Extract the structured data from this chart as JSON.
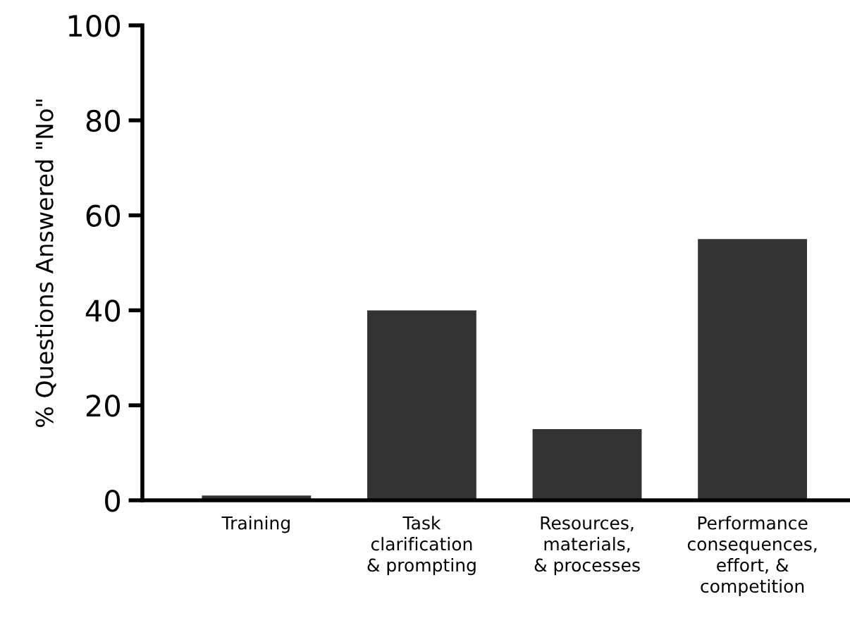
{
  "chart_data": {
    "type": "bar",
    "ylabel": "% Questions Answered \"No\"",
    "categories": [
      "Training",
      "Task\nclarification\n& prompting",
      "Resources,\nmaterials,\n& processes",
      "Performance\nconsequences,\neffort, &\ncompetition"
    ],
    "values": [
      1,
      40,
      15,
      55
    ],
    "color": "#333333",
    "ylim": [
      0,
      100
    ],
    "yticks": [
      0,
      20,
      40,
      60,
      80,
      100
    ],
    "grid": false,
    "legend": false
  }
}
